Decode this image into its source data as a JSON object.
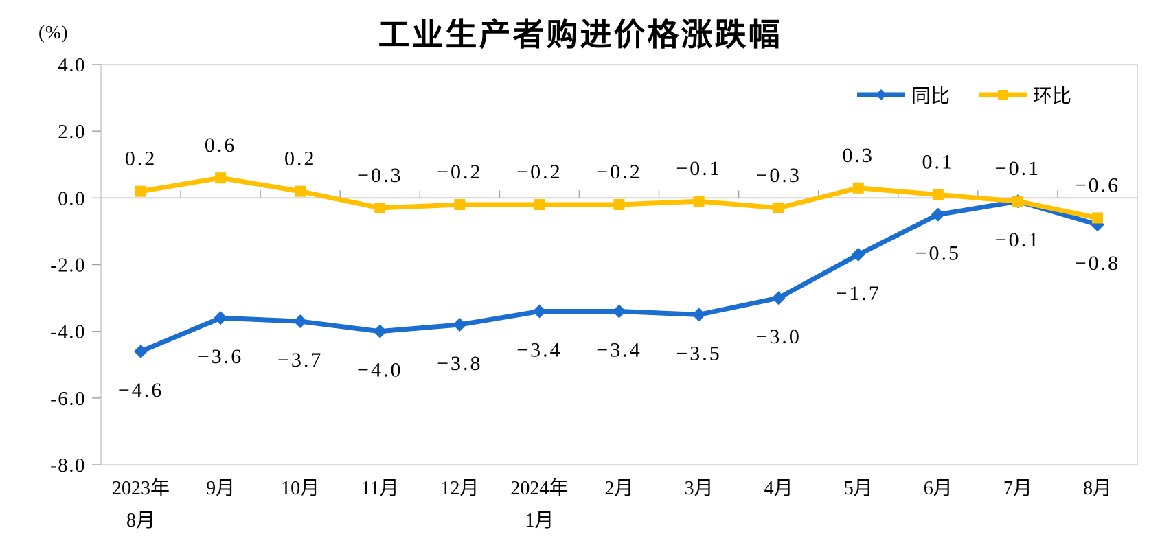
{
  "chart_data": {
    "type": "line",
    "title": "工业生产者购进价格涨跌幅",
    "unit_label": "(%)",
    "categories": [
      [
        "2023年",
        "8月"
      ],
      [
        "9月"
      ],
      [
        "10月"
      ],
      [
        "11月"
      ],
      [
        "12月"
      ],
      [
        "2024年",
        "1月"
      ],
      [
        "2月"
      ],
      [
        "3月"
      ],
      [
        "4月"
      ],
      [
        "5月"
      ],
      [
        "6月"
      ],
      [
        "7月"
      ],
      [
        "8月"
      ]
    ],
    "y_ticks": [
      "4.0",
      "2.0",
      "0.0",
      "-2.0",
      "-4.0",
      "-6.0",
      "-8.0"
    ],
    "ylim": [
      -8.0,
      4.0
    ],
    "grid": false,
    "zero_line": true,
    "legend_position": "top-right-inside",
    "series": [
      {
        "name": "同比",
        "marker": "diamond",
        "color": "#1B6ED0",
        "label_position": "below",
        "values": [
          -4.6,
          -3.6,
          -3.7,
          -4.0,
          -3.8,
          -3.4,
          -3.4,
          -3.5,
          -3.0,
          -1.7,
          -0.5,
          -0.1,
          -0.8
        ],
        "labels": [
          "−4.6",
          "−3.6",
          "−3.7",
          "−4.0",
          "−3.8",
          "−3.4",
          "−3.4",
          "−3.5",
          "−3.0",
          "−1.7",
          "−0.5",
          "−0.1",
          "−0.8"
        ]
      },
      {
        "name": "环比",
        "marker": "square",
        "color": "#FFC000",
        "label_position": "above",
        "values": [
          0.2,
          0.6,
          0.2,
          -0.3,
          -0.2,
          -0.2,
          -0.2,
          -0.1,
          -0.3,
          0.3,
          0.1,
          -0.1,
          -0.6
        ],
        "labels": [
          "0.2",
          "0.6",
          "0.2",
          "−0.3",
          "−0.2",
          "−0.2",
          "−0.2",
          "−0.1",
          "−0.3",
          "0.3",
          "0.1",
          "−0.1",
          "−0.6"
        ]
      }
    ],
    "axis_colors": {
      "zero_line": "#A6A6A6",
      "plot_border": "#D9D9D9",
      "tick": "#A6A6A6",
      "text": "#000000"
    }
  }
}
